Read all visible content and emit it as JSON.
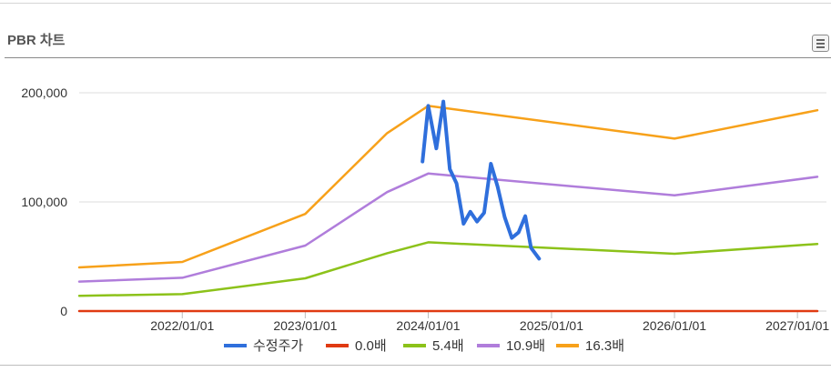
{
  "header": {
    "title": "PBR 차트",
    "menu_icon": "list-menu-icon"
  },
  "chart_data": {
    "type": "line",
    "x_tick_labels": [
      "2022/01/01",
      "2023/01/01",
      "2024/01/01",
      "2025/01/01",
      "2026/01/01",
      "2027/01/01"
    ],
    "y_tick_labels": [
      "0",
      "100,000",
      "200,000"
    ],
    "ylim": [
      0,
      200000
    ],
    "grid": true,
    "legend_position": "bottom",
    "series": [
      {
        "name": "수정주가",
        "color": "#2f6fdc",
        "points": [
          [
            "2023/12/15",
            137000
          ],
          [
            "2024/01/01",
            188000
          ],
          [
            "2024/01/25",
            149000
          ],
          [
            "2024/02/15",
            192000
          ],
          [
            "2024/03/05",
            130000
          ],
          [
            "2024/03/25",
            117000
          ],
          [
            "2024/04/15",
            80000
          ],
          [
            "2024/05/05",
            91000
          ],
          [
            "2024/05/25",
            82000
          ],
          [
            "2024/06/15",
            90000
          ],
          [
            "2024/07/05",
            135000
          ],
          [
            "2024/07/25",
            114000
          ],
          [
            "2024/08/15",
            86000
          ],
          [
            "2024/09/05",
            67000
          ],
          [
            "2024/09/25",
            72000
          ],
          [
            "2024/10/15",
            87000
          ],
          [
            "2024/11/01",
            58000
          ],
          [
            "2024/11/25",
            48000
          ]
        ]
      },
      {
        "name": "0.0배",
        "color": "#e03a12",
        "points": [
          [
            "2021/03/01",
            0
          ],
          [
            "2027/03/01",
            0
          ]
        ]
      },
      {
        "name": "5.4배",
        "color": "#8cc21a",
        "points": [
          [
            "2021/03/01",
            14000
          ],
          [
            "2022/01/01",
            15500
          ],
          [
            "2023/01/01",
            30000
          ],
          [
            "2023/09/01",
            53000
          ],
          [
            "2024/01/01",
            63000
          ],
          [
            "2026/01/01",
            52500
          ],
          [
            "2027/03/01",
            61500
          ]
        ]
      },
      {
        "name": "10.9배",
        "color": "#b07ddb",
        "points": [
          [
            "2021/03/01",
            27000
          ],
          [
            "2022/01/01",
            30500
          ],
          [
            "2023/01/01",
            60000
          ],
          [
            "2023/09/01",
            109000
          ],
          [
            "2024/01/01",
            126000
          ],
          [
            "2026/01/01",
            106000
          ],
          [
            "2027/03/01",
            123000
          ]
        ]
      },
      {
        "name": "16.3배",
        "color": "#f7a11a",
        "points": [
          [
            "2021/03/01",
            40000
          ],
          [
            "2022/01/01",
            45000
          ],
          [
            "2023/01/01",
            89000
          ],
          [
            "2023/09/01",
            163000
          ],
          [
            "2024/01/01",
            188000
          ],
          [
            "2026/01/01",
            158000
          ],
          [
            "2027/03/01",
            184000
          ]
        ]
      }
    ]
  }
}
